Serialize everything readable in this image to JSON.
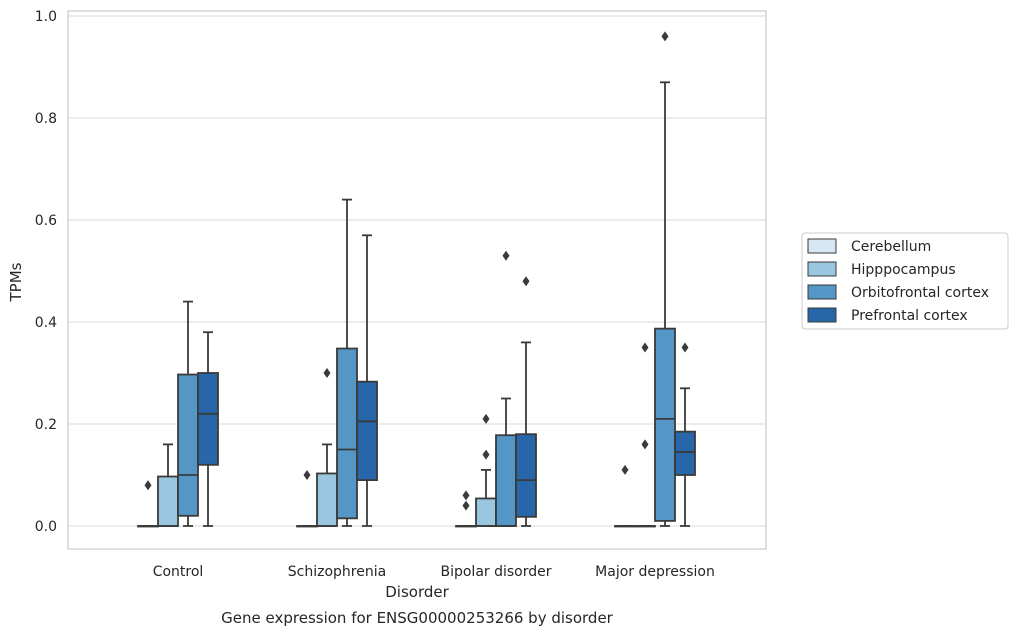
{
  "chart_data": {
    "type": "box",
    "title": "",
    "caption": "Gene expression for ENSG00000253266 by disorder",
    "xlabel": "Disorder",
    "ylabel": "TPMs",
    "ylim": [
      -0.045,
      1.01
    ],
    "yticks": [
      "0.0",
      "0.2",
      "0.4",
      "0.6",
      "0.8",
      "1.0"
    ],
    "grid": "horizontal",
    "legend_position": "right",
    "categories": [
      "Control",
      "Schizophrenia",
      "Bipolar disorder",
      "Major depression"
    ],
    "series": [
      {
        "name": "Cerebellum",
        "color": "#d6e6f4",
        "boxes": [
          {
            "whisker_low": 0,
            "q1": 0,
            "median": 0,
            "q3": 0,
            "whisker_high": 0,
            "outliers": [
              0.08
            ]
          },
          {
            "whisker_low": 0,
            "q1": 0,
            "median": 0,
            "q3": 0,
            "whisker_high": 0,
            "outliers": [
              0.1
            ]
          },
          {
            "whisker_low": 0,
            "q1": 0,
            "median": 0,
            "q3": 0,
            "whisker_high": 0,
            "outliers": [
              0.04,
              0.06
            ]
          },
          {
            "whisker_low": 0,
            "q1": 0,
            "median": 0,
            "q3": 0,
            "whisker_high": 0,
            "outliers": [
              0.11
            ]
          }
        ]
      },
      {
        "name": "Hipppocampus",
        "color": "#9ac7e0",
        "boxes": [
          {
            "whisker_low": 0,
            "q1": 0,
            "median": 0,
            "q3": 0.097,
            "whisker_high": 0.16,
            "outliers": []
          },
          {
            "whisker_low": 0,
            "q1": 0,
            "median": 0,
            "q3": 0.103,
            "whisker_high": 0.16,
            "outliers": [
              0.3
            ]
          },
          {
            "whisker_low": 0,
            "q1": 0,
            "median": 0,
            "q3": 0.054,
            "whisker_high": 0.11,
            "outliers": [
              0.14,
              0.21
            ]
          },
          {
            "whisker_low": 0,
            "q1": 0,
            "median": 0,
            "q3": 0,
            "whisker_high": 0,
            "outliers": [
              0.16,
              0.35
            ]
          }
        ]
      },
      {
        "name": "Orbitofrontal cortex",
        "color": "#5497c7",
        "boxes": [
          {
            "whisker_low": 0,
            "q1": 0.02,
            "median": 0.1,
            "q3": 0.297,
            "whisker_high": 0.44,
            "outliers": []
          },
          {
            "whisker_low": 0,
            "q1": 0.015,
            "median": 0.15,
            "q3": 0.348,
            "whisker_high": 0.64,
            "outliers": []
          },
          {
            "whisker_low": 0,
            "q1": 0,
            "median": 0,
            "q3": 0.178,
            "whisker_high": 0.25,
            "outliers": [
              0.53
            ]
          },
          {
            "whisker_low": 0,
            "q1": 0.01,
            "median": 0.21,
            "q3": 0.387,
            "whisker_high": 0.87,
            "outliers": [
              0.96
            ]
          }
        ]
      },
      {
        "name": "Prefrontal cortex",
        "color": "#2767a9",
        "boxes": [
          {
            "whisker_low": 0,
            "q1": 0.12,
            "median": 0.22,
            "q3": 0.3,
            "whisker_high": 0.38,
            "outliers": []
          },
          {
            "whisker_low": 0,
            "q1": 0.09,
            "median": 0.205,
            "q3": 0.283,
            "whisker_high": 0.57,
            "outliers": []
          },
          {
            "whisker_low": 0,
            "q1": 0.018,
            "median": 0.09,
            "q3": 0.18,
            "whisker_high": 0.36,
            "outliers": [
              0.48
            ]
          },
          {
            "whisker_low": 0,
            "q1": 0.1,
            "median": 0.145,
            "q3": 0.185,
            "whisker_high": 0.27,
            "outliers": [
              0.35
            ]
          }
        ]
      }
    ]
  }
}
